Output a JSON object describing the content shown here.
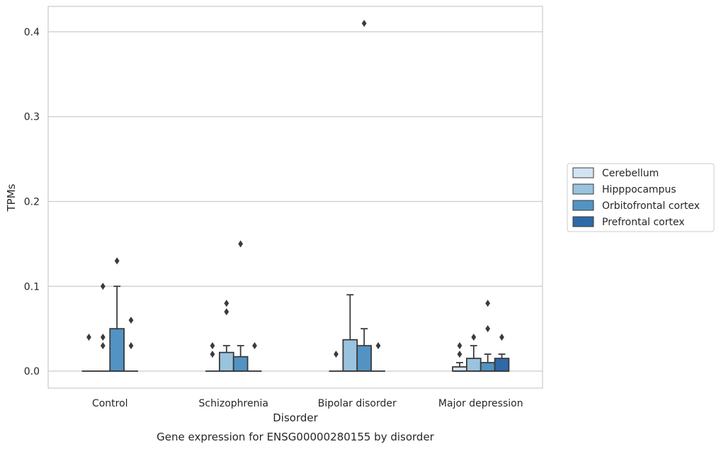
{
  "chart_data": {
    "type": "box",
    "title": "Gene expression for ENSG00000280155 by disorder",
    "xlabel": "Disorder",
    "ylabel": "TPMs",
    "categories": [
      "Control",
      "Schizophrenia",
      "Bipolar disorder",
      "Major depression"
    ],
    "ylim": [
      -0.02,
      0.43
    ],
    "yticks": [
      0.0,
      0.1,
      0.2,
      0.3,
      0.4
    ],
    "ytick_labels": [
      "0.0",
      "0.1",
      "0.2",
      "0.3",
      "0.4"
    ],
    "grid": true,
    "legend_position": "right",
    "series": [
      {
        "name": "Cerebellum",
        "color": "#d3e3f2",
        "boxes": [
          {
            "q1": 0,
            "median": 0,
            "q3": 0,
            "whisker_low": 0,
            "whisker_high": 0,
            "outliers": [
              0.04
            ]
          },
          {
            "q1": 0,
            "median": 0,
            "q3": 0,
            "whisker_low": 0,
            "whisker_high": 0,
            "outliers": [
              0.02,
              0.03
            ]
          },
          {
            "q1": 0,
            "median": 0,
            "q3": 0,
            "whisker_low": 0,
            "whisker_high": 0,
            "outliers": [
              0.02
            ]
          },
          {
            "q1": 0,
            "median": 0,
            "q3": 0.005,
            "whisker_low": 0,
            "whisker_high": 0.01,
            "outliers": [
              0.02,
              0.03
            ]
          }
        ]
      },
      {
        "name": "Hipppocampus",
        "color": "#9ac3df",
        "boxes": [
          {
            "q1": 0,
            "median": 0,
            "q3": 0,
            "whisker_low": 0,
            "whisker_high": 0,
            "outliers": [
              0.03,
              0.04,
              0.1
            ]
          },
          {
            "q1": 0,
            "median": 0,
            "q3": 0.022,
            "whisker_low": 0,
            "whisker_high": 0.03,
            "outliers": [
              0.07,
              0.08
            ]
          },
          {
            "q1": 0,
            "median": 0,
            "q3": 0.037,
            "whisker_low": 0,
            "whisker_high": 0.09,
            "outliers": []
          },
          {
            "q1": 0,
            "median": 0,
            "q3": 0.015,
            "whisker_low": 0,
            "whisker_high": 0.03,
            "outliers": [
              0.04
            ]
          }
        ]
      },
      {
        "name": "Orbitofrontal cortex",
        "color": "#5293c4",
        "boxes": [
          {
            "q1": 0,
            "median": 0,
            "q3": 0.05,
            "whisker_low": 0,
            "whisker_high": 0.1,
            "outliers": [
              0.13
            ]
          },
          {
            "q1": 0,
            "median": 0,
            "q3": 0.017,
            "whisker_low": 0,
            "whisker_high": 0.03,
            "outliers": [
              0.15
            ]
          },
          {
            "q1": 0,
            "median": 0,
            "q3": 0.03,
            "whisker_low": 0,
            "whisker_high": 0.05,
            "outliers": [
              0.41
            ]
          },
          {
            "q1": 0,
            "median": 0,
            "q3": 0.01,
            "whisker_low": 0,
            "whisker_high": 0.02,
            "outliers": [
              0.05,
              0.08
            ]
          }
        ]
      },
      {
        "name": "Prefrontal cortex",
        "color": "#2e69a8",
        "boxes": [
          {
            "q1": 0,
            "median": 0,
            "q3": 0,
            "whisker_low": 0,
            "whisker_high": 0,
            "outliers": [
              0.03,
              0.06
            ]
          },
          {
            "q1": 0,
            "median": 0,
            "q3": 0,
            "whisker_low": 0,
            "whisker_high": 0,
            "outliers": [
              0.03
            ]
          },
          {
            "q1": 0,
            "median": 0,
            "q3": 0,
            "whisker_low": 0,
            "whisker_high": 0,
            "outliers": [
              0.03
            ]
          },
          {
            "q1": 0,
            "median": 0,
            "q3": 0.015,
            "whisker_low": 0,
            "whisker_high": 0.02,
            "outliers": [
              0.04
            ]
          }
        ]
      }
    ]
  }
}
